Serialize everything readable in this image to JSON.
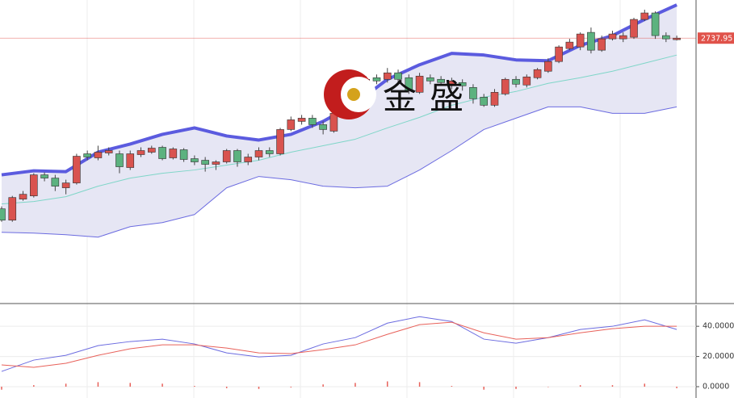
{
  "watermark": "金盛",
  "chart_data": [
    {
      "type": "candlestick",
      "ylim": [
        2574,
        2761.5
      ],
      "xlim": [
        -0.15,
        64.8
      ],
      "up_color": "#d9534f",
      "down_color": "#5cb27f",
      "open": [
        2632.5,
        2625.5,
        2638.5,
        2640.5,
        2653.5,
        2651.5,
        2645.5,
        2648.5,
        2666.5,
        2664,
        2667,
        2666.5,
        2658,
        2666,
        2667.5,
        2670.5,
        2664,
        2669,
        2663.5,
        2662.5,
        2660,
        2661.5,
        2668.5,
        2661.5,
        2664.5,
        2668.5,
        2666.5,
        2681.5,
        2686.5,
        2688.5,
        2684.5,
        2680.5,
        2691.5,
        2700.5,
        2702.5,
        2713.5,
        2712.5,
        2716.5,
        2713.5,
        2704.5,
        2713.5,
        2712.5,
        2708.5,
        2710.5,
        2707.5,
        2701.5,
        2696.5,
        2703.5,
        2712.5,
        2709,
        2713.5,
        2717.5,
        2723.5,
        2731.5,
        2732.5,
        2741.5,
        2730.5,
        2737.5,
        2737.5,
        2738.5,
        2749.5,
        2753.5,
        2739.5,
        2737
      ],
      "high": [
        2634,
        2640.5,
        2643.5,
        2654.5,
        2655,
        2653.5,
        2650.5,
        2666.5,
        2668.5,
        2671.5,
        2670.5,
        2668.5,
        2668.5,
        2670.5,
        2671.5,
        2671.5,
        2670.5,
        2670,
        2665.5,
        2664.5,
        2662.5,
        2669.5,
        2669.5,
        2666.5,
        2670.5,
        2670.5,
        2682.5,
        2689.5,
        2690.5,
        2690.5,
        2686.5,
        2693.5,
        2703.5,
        2708.5,
        2714.5,
        2715.5,
        2719.5,
        2718.5,
        2715.5,
        2716.5,
        2715.5,
        2714.5,
        2713.5,
        2712.5,
        2709.5,
        2703.5,
        2706.5,
        2713.5,
        2714.5,
        2715.5,
        2719.5,
        2725.5,
        2733.5,
        2737.5,
        2741.5,
        2744.5,
        2739.5,
        2742.5,
        2741.5,
        2750.5,
        2755.5,
        2754.5,
        2741.5,
        2739.5
      ],
      "low": [
        2624.5,
        2624.5,
        2637.5,
        2639.5,
        2649.5,
        2643.5,
        2641.5,
        2647.5,
        2662.5,
        2662.5,
        2665.5,
        2654.5,
        2656.5,
        2664.5,
        2666.5,
        2662.5,
        2663,
        2661.5,
        2659.5,
        2655.5,
        2656.5,
        2660.5,
        2658.5,
        2659.5,
        2662.5,
        2664.5,
        2665.5,
        2680.5,
        2684.5,
        2682.5,
        2678.5,
        2679.5,
        2690.5,
        2699.5,
        2701.5,
        2709.5,
        2710.5,
        2709.5,
        2703.5,
        2703.5,
        2709.5,
        2708.5,
        2706.5,
        2705.5,
        2697.5,
        2695.5,
        2695.5,
        2702.5,
        2707.5,
        2707.5,
        2712.5,
        2716.5,
        2722.5,
        2730.5,
        2730.5,
        2728.5,
        2729.5,
        2736.5,
        2735.5,
        2737.5,
        2748.5,
        2737.5,
        2735.5,
        2736.5
      ],
      "close": [
        2625.5,
        2639.5,
        2641.5,
        2653.5,
        2651.5,
        2646.5,
        2648.5,
        2665,
        2664.5,
        2667.5,
        2668.5,
        2658.5,
        2666.5,
        2668.5,
        2670,
        2663.5,
        2669.5,
        2663,
        2661.5,
        2660,
        2661.5,
        2668.5,
        2661.5,
        2664.5,
        2668.5,
        2666.5,
        2681.5,
        2687.5,
        2688.5,
        2684.5,
        2681.5,
        2691.5,
        2701.5,
        2706.5,
        2712.5,
        2711.5,
        2716.5,
        2712.5,
        2705.5,
        2714.5,
        2711.5,
        2710.5,
        2711.5,
        2708.5,
        2700.5,
        2696.5,
        2704.5,
        2712.5,
        2709.5,
        2714,
        2718.5,
        2723.5,
        2732.5,
        2735.5,
        2740.5,
        2730.5,
        2737.5,
        2740.5,
        2739.5,
        2749.5,
        2753.5,
        2739.5,
        2737.5,
        2737.95
      ],
      "bands": [
        {
          "color": "#5b5bdf",
          "x": [
            0,
            3,
            6,
            9,
            12,
            15,
            18,
            21,
            24,
            27,
            30,
            33,
            36,
            39,
            42,
            45,
            48,
            51,
            54,
            57,
            60,
            63
          ],
          "values": [
            2653.5,
            2656,
            2655.5,
            2667.5,
            2672.5,
            2678.5,
            2682.5,
            2677.5,
            2675,
            2678.5,
            2686.5,
            2697.5,
            2712.5,
            2721.5,
            2728.5,
            2727.5,
            2724.5,
            2724,
            2733.5,
            2739.5,
            2749.5,
            2758.5
          ]
        },
        {
          "color": "#7fd6c8",
          "x": [
            0,
            3,
            6,
            9,
            12,
            15,
            18,
            21,
            24,
            27,
            30,
            33,
            36,
            39,
            42,
            45,
            48,
            51,
            54,
            57,
            60,
            63
          ],
          "values": [
            2635.5,
            2637,
            2640,
            2646.5,
            2651.5,
            2654.5,
            2656.5,
            2659.5,
            2662.5,
            2667.5,
            2671.5,
            2675.5,
            2682.5,
            2689,
            2696.5,
            2701.5,
            2705,
            2710,
            2713.5,
            2717.5,
            2722.5,
            2727.5
          ]
        },
        {
          "color": "#6b6be0",
          "x": [
            0,
            3,
            6,
            9,
            12,
            15,
            18,
            21,
            24,
            27,
            30,
            33,
            36,
            39,
            42,
            45,
            48,
            51,
            54,
            57,
            60,
            63
          ],
          "values": [
            2618,
            2617.5,
            2616.5,
            2615,
            2621.5,
            2624,
            2629,
            2645.5,
            2652.5,
            2650.5,
            2646.5,
            2645.5,
            2646.5,
            2656.5,
            2668.5,
            2681.5,
            2688.5,
            2695.5,
            2695.5,
            2691.5,
            2691.5,
            2695.5
          ]
        }
      ],
      "band_fill": "#e6e6f4",
      "last_price": 2737.95,
      "last_price_color": "#e0524a"
    },
    {
      "type": "line",
      "ylim": [
        -7.5,
        54
      ],
      "xlim": [
        -0.15,
        64.8
      ],
      "yticks": [
        {
          "value": 40,
          "label": "40.0000"
        },
        {
          "value": 20,
          "label": "20.0000"
        },
        {
          "value": 0,
          "label": "0.0000"
        }
      ],
      "series": [
        {
          "color": "#6b6be0",
          "x": [
            0,
            3,
            6,
            9,
            12,
            15,
            18,
            21,
            24,
            27,
            30,
            33,
            36,
            39,
            42,
            45,
            48,
            51,
            54,
            57,
            60,
            63
          ],
          "values": [
            10.1,
            17.6,
            20.8,
            27.2,
            29.9,
            31.5,
            28.3,
            22.4,
            19.7,
            20.8,
            28.3,
            32.5,
            42.1,
            46.4,
            43.2,
            31.5,
            28.8,
            32.5,
            37.9,
            40,
            44.3,
            37.9
          ]
        },
        {
          "color": "#e8615a",
          "x": [
            0,
            3,
            6,
            9,
            12,
            15,
            18,
            21,
            24,
            27,
            30,
            33,
            36,
            39,
            42,
            45,
            48,
            51,
            54,
            57,
            60,
            63
          ],
          "values": [
            14.4,
            12.8,
            15.5,
            20.8,
            25.1,
            27.7,
            27.7,
            25.6,
            22.4,
            21.9,
            24.5,
            27.7,
            34.7,
            41.1,
            42.7,
            35.7,
            31.5,
            32.5,
            35.7,
            38.4,
            40,
            40
          ]
        }
      ],
      "bars": {
        "color": "#e8615a",
        "x": [
          0,
          3,
          6,
          9,
          12,
          15,
          18,
          21,
          24,
          27,
          30,
          33,
          36,
          39,
          42,
          45,
          48,
          51,
          54,
          57,
          60,
          63
        ],
        "values": [
          -2,
          1,
          2,
          3,
          2.5,
          2,
          0.5,
          -1,
          -1.5,
          -0.5,
          1.5,
          2.5,
          3.5,
          3,
          0.5,
          -2,
          -1.5,
          0,
          1,
          1,
          2,
          -1
        ]
      }
    }
  ]
}
